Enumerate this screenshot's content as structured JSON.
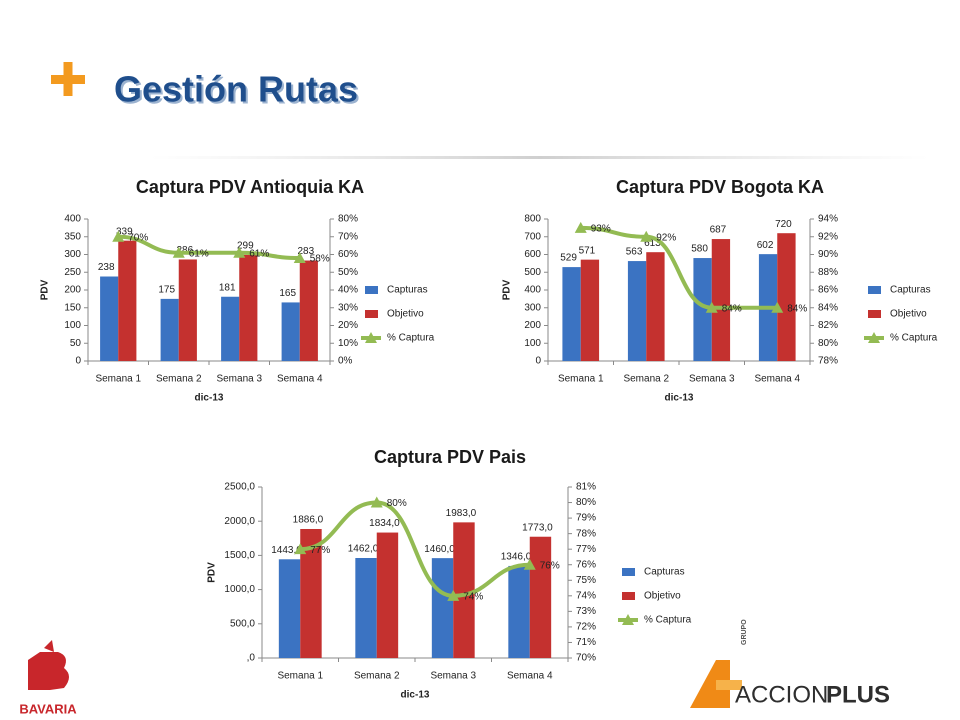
{
  "header": {
    "title": "Gestión Rutas"
  },
  "logos": {
    "left": "BAVARIA",
    "right_a": "ACCION",
    "right_b": "PLUS",
    "grupo": "GRUPO"
  },
  "chart_data": [
    {
      "type": "bar_line",
      "title": "Captura PDV Antioquia KA",
      "x_label": "dic-13",
      "y_label": "PDV",
      "categories": [
        "Semana 1",
        "Semana 2",
        "Semana 3",
        "Semana 4"
      ],
      "legend": "right",
      "series": [
        {
          "name": "Capturas",
          "color": "#3b73c2",
          "values": [
            238,
            175,
            181,
            165
          ]
        },
        {
          "name": "Objetivo",
          "color": "#c4312f",
          "values": [
            339,
            286,
            299,
            283
          ]
        },
        {
          "name": "% Captura",
          "color": "#93bb53",
          "axis": "y2",
          "values": [
            70,
            61,
            61,
            58
          ],
          "value_labels": [
            "70%",
            "61%",
            "61%",
            "58%"
          ]
        }
      ],
      "ylim": [
        0,
        400
      ],
      "yticks": [
        0,
        50,
        100,
        150,
        200,
        250,
        300,
        350,
        400
      ],
      "y2lim": [
        0,
        80
      ],
      "y2ticks": [
        {
          "value": 0,
          "label": "0%"
        },
        {
          "value": 10,
          "label": "10%"
        },
        {
          "value": 20,
          "label": "20%"
        },
        {
          "value": 30,
          "label": "30%"
        },
        {
          "value": 40,
          "label": "40%"
        },
        {
          "value": 50,
          "label": "50%"
        },
        {
          "value": 60,
          "label": "60%"
        },
        {
          "value": 70,
          "label": "70%"
        },
        {
          "value": 80,
          "label": "80%"
        }
      ]
    },
    {
      "type": "bar_line",
      "title": "Captura PDV Bogota KA",
      "x_label": "dic-13",
      "y_label": "PDV",
      "categories": [
        "Semana 1",
        "Semana 2",
        "Semana 3",
        "Semana 4"
      ],
      "legend": "right",
      "series": [
        {
          "name": "Capturas",
          "color": "#3b73c2",
          "values": [
            529,
            563,
            580,
            602
          ]
        },
        {
          "name": "Objetivo",
          "color": "#c4312f",
          "values": [
            571,
            613,
            687,
            720
          ]
        },
        {
          "name": "% Captura",
          "color": "#93bb53",
          "axis": "y2",
          "values": [
            93,
            92,
            84,
            84
          ],
          "value_labels": [
            "93%",
            "92%",
            "84%",
            "84%"
          ]
        }
      ],
      "ylim": [
        0,
        800
      ],
      "yticks": [
        0,
        100,
        200,
        300,
        400,
        500,
        600,
        700,
        800
      ],
      "y2lim": [
        78,
        94
      ],
      "y2ticks": [
        {
          "value": 78,
          "label": "78%"
        },
        {
          "value": 80,
          "label": "80%"
        },
        {
          "value": 82,
          "label": "82%"
        },
        {
          "value": 84,
          "label": "84%"
        },
        {
          "value": 86,
          "label": "86%"
        },
        {
          "value": 88,
          "label": "88%"
        },
        {
          "value": 90,
          "label": "90%"
        },
        {
          "value": 92,
          "label": "92%"
        },
        {
          "value": 94,
          "label": "94%"
        }
      ]
    },
    {
      "type": "bar_line",
      "title": "Captura PDV Pais",
      "x_label": "dic-13",
      "y_label": "PDV",
      "categories": [
        "Semana 1",
        "Semana 2",
        "Semana 3",
        "Semana 4"
      ],
      "legend": "right",
      "series": [
        {
          "name": "Capturas",
          "color": "#3b73c2",
          "values": [
            1443,
            1462,
            1460,
            1346
          ],
          "value_labels": [
            "1443,0",
            "1462,0",
            "1460,0",
            "1346,0"
          ]
        },
        {
          "name": "Objetivo",
          "color": "#c4312f",
          "values": [
            1886,
            1834,
            1983,
            1773
          ],
          "value_labels": [
            "1886,0",
            "1834,0",
            "1983,0",
            "1773,0"
          ]
        },
        {
          "name": "% Captura",
          "color": "#93bb53",
          "axis": "y2",
          "values": [
            77,
            80,
            74,
            76
          ],
          "value_labels": [
            "77%",
            "80%",
            "74%",
            "76%"
          ]
        }
      ],
      "ylim": [
        0,
        2500
      ],
      "yticks": [
        {
          "value": 0,
          "label": ",0"
        },
        {
          "value": 500,
          "label": "500,0"
        },
        {
          "value": 1000,
          "label": "1000,0"
        },
        {
          "value": 1500,
          "label": "1500,0"
        },
        {
          "value": 2000,
          "label": "2000,0"
        },
        {
          "value": 2500,
          "label": "2500,0"
        }
      ],
      "y2lim": [
        70,
        81
      ],
      "y2ticks": [
        {
          "value": 70,
          "label": "70%"
        },
        {
          "value": 71,
          "label": "71%"
        },
        {
          "value": 72,
          "label": "72%"
        },
        {
          "value": 73,
          "label": "73%"
        },
        {
          "value": 74,
          "label": "74%"
        },
        {
          "value": 75,
          "label": "75%"
        },
        {
          "value": 76,
          "label": "76%"
        },
        {
          "value": 77,
          "label": "77%"
        },
        {
          "value": 78,
          "label": "78%"
        },
        {
          "value": 79,
          "label": "79%"
        },
        {
          "value": 80,
          "label": "80%"
        },
        {
          "value": 81,
          "label": "81%"
        }
      ]
    }
  ]
}
